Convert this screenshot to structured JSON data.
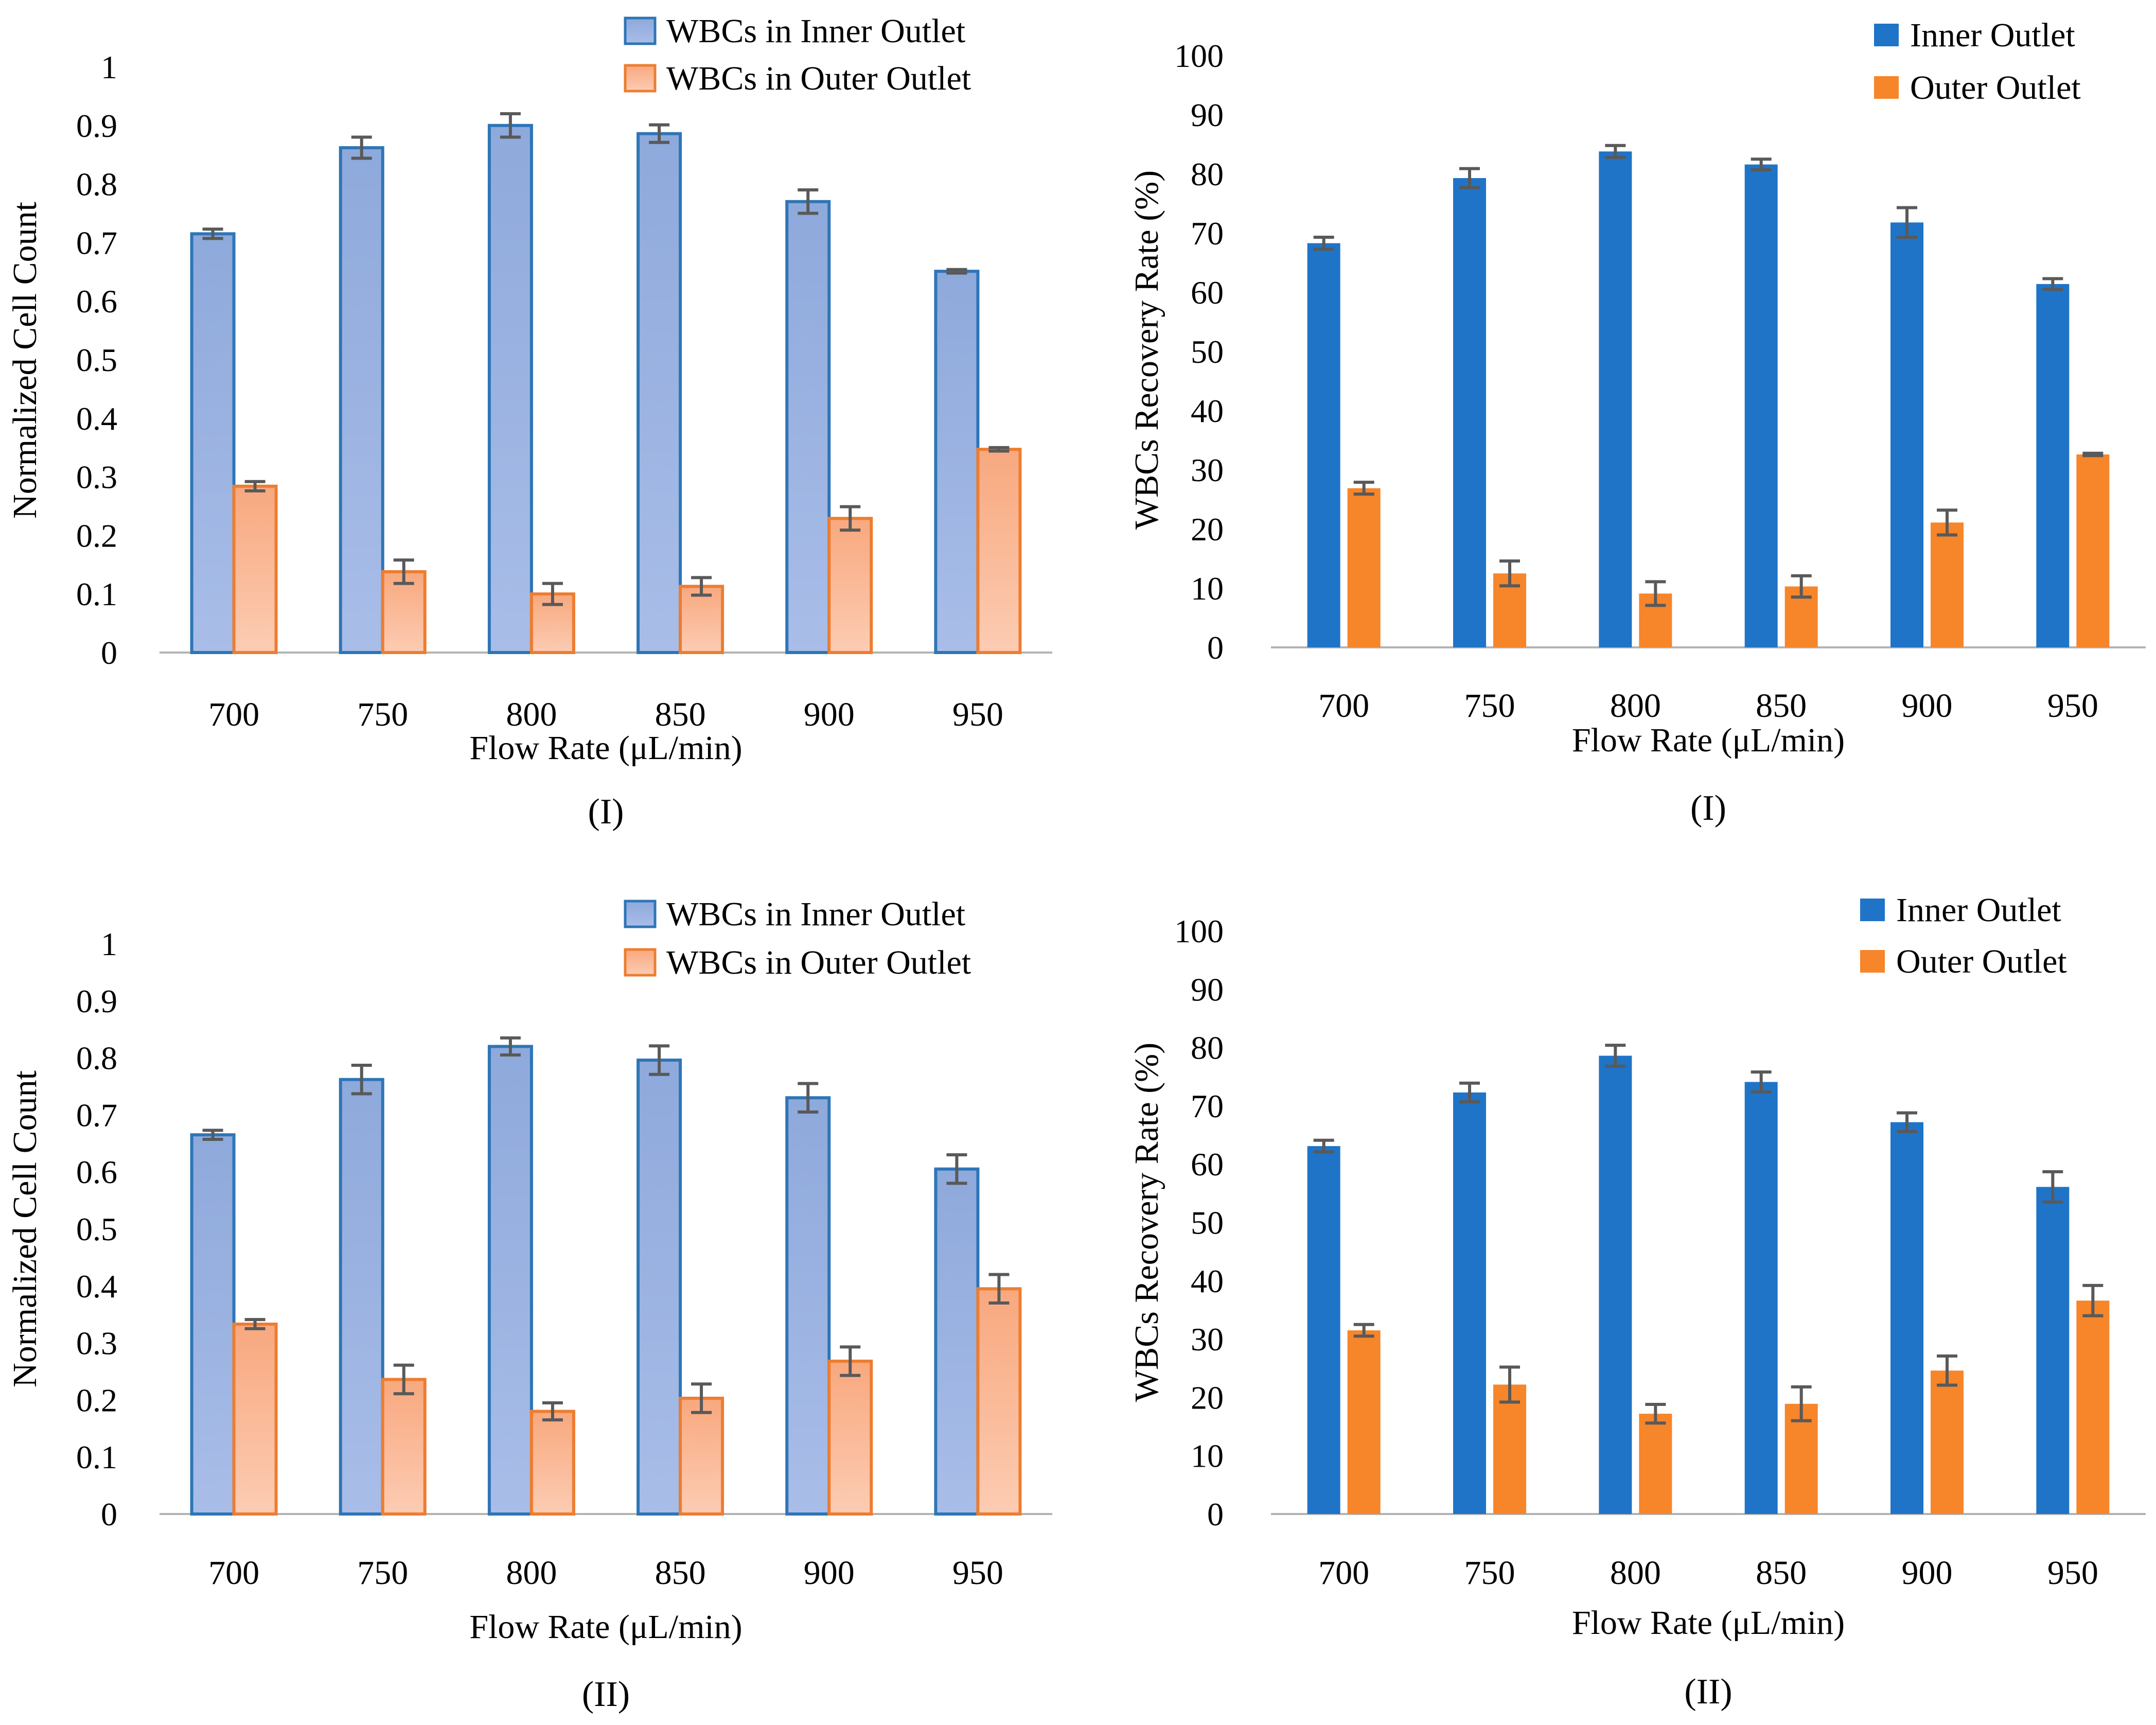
{
  "colors": {
    "normalized_inner_fill_top": "#8EA9DB",
    "normalized_inner_fill_bottom": "#A9BDE8",
    "normalized_inner_stroke": "#2E75B6",
    "normalized_outer_fill_top": "#F8A87E",
    "normalized_outer_fill_bottom": "#FCCCB3",
    "normalized_outer_stroke": "#ED7D31",
    "recovery_inner": "#1F74C8",
    "recovery_outer": "#F7852A",
    "error_bar": "#595959",
    "axis": "#B3B3B3"
  },
  "chart_data": [
    {
      "id": "norm-I",
      "type": "bar",
      "style": "normalized",
      "caption": "(I)",
      "xlabel": "Flow Rate (μL/min)",
      "ylabel": "Normalized Cell Count",
      "ylim": [
        0,
        1
      ],
      "yticks": [
        0,
        0.1,
        0.2,
        0.3,
        0.4,
        0.5,
        0.6,
        0.7,
        0.8,
        0.9,
        1
      ],
      "ytick_labels": [
        "0",
        "0.1",
        "0.2",
        "0.3",
        "0.4",
        "0.5",
        "0.6",
        "0.7",
        "0.8",
        "0.9",
        "1"
      ],
      "categories": [
        "700",
        "750",
        "800",
        "850",
        "900",
        "950"
      ],
      "legend_position": "top-right",
      "series": [
        {
          "name": "WBCs in Inner Outlet",
          "values": [
            0.715,
            0.862,
            0.9,
            0.886,
            0.77,
            0.651
          ],
          "errors": [
            0.008,
            0.018,
            0.02,
            0.015,
            0.02,
            0.003
          ]
        },
        {
          "name": "WBCs in Outer Outlet",
          "values": [
            0.284,
            0.138,
            0.1,
            0.113,
            0.229,
            0.347
          ],
          "errors": [
            0.008,
            0.02,
            0.018,
            0.015,
            0.02,
            0.003
          ]
        }
      ]
    },
    {
      "id": "rec-I",
      "type": "bar",
      "style": "recovery",
      "caption": "(I)",
      "xlabel": "Flow Rate (μL/min)",
      "ylabel": "WBCs Recovery Rate (%)",
      "ylim": [
        0,
        100
      ],
      "yticks": [
        0,
        10,
        20,
        30,
        40,
        50,
        60,
        70,
        80,
        90,
        100
      ],
      "ytick_labels": [
        "0",
        "10",
        "20",
        "30",
        "40",
        "50",
        "60",
        "70",
        "80",
        "90",
        "100"
      ],
      "categories": [
        "700",
        "750",
        "800",
        "850",
        "900",
        "950"
      ],
      "legend_position": "top-right",
      "series": [
        {
          "name": "Inner Outlet",
          "values": [
            68.3,
            79.3,
            83.8,
            81.6,
            71.8,
            61.4
          ],
          "errors": [
            1.0,
            1.6,
            1.0,
            0.9,
            2.5,
            0.9
          ]
        },
        {
          "name": "Outer Outlet",
          "values": [
            26.9,
            12.5,
            9.1,
            10.3,
            21.1,
            32.6
          ],
          "errors": [
            1.0,
            2.1,
            2.0,
            1.8,
            2.1,
            0.2
          ]
        }
      ]
    },
    {
      "id": "norm-II",
      "type": "bar",
      "style": "normalized",
      "caption": "(II)",
      "xlabel": "Flow Rate (μL/min)",
      "ylabel": "Normalized Cell Count",
      "ylim": [
        0,
        1
      ],
      "yticks": [
        0,
        0.1,
        0.2,
        0.3,
        0.4,
        0.5,
        0.6,
        0.7,
        0.8,
        0.9,
        1
      ],
      "ytick_labels": [
        "0",
        "0.1",
        "0.2",
        "0.3",
        "0.4",
        "0.5",
        "0.6",
        "0.7",
        "0.8",
        "0.9",
        "1"
      ],
      "categories": [
        "700",
        "750",
        "800",
        "850",
        "900",
        "950"
      ],
      "legend_position": "top-right",
      "series": [
        {
          "name": "WBCs in Inner Outlet",
          "values": [
            0.665,
            0.762,
            0.82,
            0.796,
            0.73,
            0.605
          ],
          "errors": [
            0.008,
            0.025,
            0.015,
            0.025,
            0.025,
            0.025
          ]
        },
        {
          "name": "WBCs in Outer Outlet",
          "values": [
            0.333,
            0.236,
            0.18,
            0.203,
            0.268,
            0.395
          ],
          "errors": [
            0.008,
            0.025,
            0.015,
            0.025,
            0.025,
            0.025
          ]
        }
      ]
    },
    {
      "id": "rec-II",
      "type": "bar",
      "style": "recovery",
      "caption": "(II)",
      "xlabel": "Flow Rate (μL/min)",
      "ylabel": "WBCs Recovery Rate (%)",
      "ylim": [
        0,
        100
      ],
      "yticks": [
        0,
        10,
        20,
        30,
        40,
        50,
        60,
        70,
        80,
        90,
        100
      ],
      "ytick_labels": [
        "0",
        "10",
        "20",
        "30",
        "40",
        "50",
        "60",
        "70",
        "80",
        "90",
        "100"
      ],
      "categories": [
        "700",
        "750",
        "800",
        "850",
        "900",
        "950"
      ],
      "legend_position": "top-right",
      "series": [
        {
          "name": "Inner Outlet",
          "values": [
            63.1,
            72.3,
            78.6,
            74.1,
            67.2,
            56.1
          ],
          "errors": [
            1.0,
            1.6,
            1.8,
            1.7,
            1.6,
            2.6
          ]
        },
        {
          "name": "Outer Outlet",
          "values": [
            31.5,
            22.2,
            17.2,
            18.9,
            24.6,
            36.6
          ],
          "errors": [
            1.0,
            3.0,
            1.6,
            2.9,
            2.5,
            2.6
          ]
        }
      ]
    }
  ]
}
